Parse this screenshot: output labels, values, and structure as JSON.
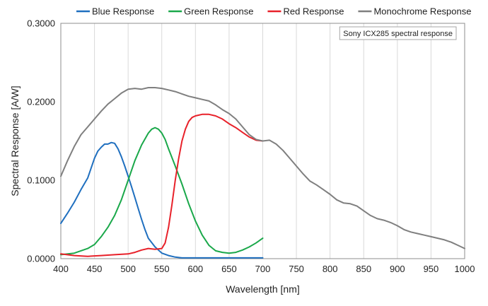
{
  "chart_data": {
    "type": "line",
    "xlabel": "Wavelength [nm]",
    "ylabel": "Spectral Response [A/W]",
    "xlim": [
      400,
      1000
    ],
    "ylim": [
      0,
      0.3
    ],
    "x_ticks": [
      "400",
      "450",
      "500",
      "550",
      "600",
      "650",
      "700",
      "750",
      "800",
      "850",
      "900",
      "950",
      "1000"
    ],
    "y_ticks": [
      "0.0000",
      "0.1000",
      "0.2000",
      "0.3000"
    ],
    "grid": "vertical",
    "legend_position": "top",
    "annotation": "Sony ICX285 spectral response",
    "series": [
      {
        "name": "Blue Response",
        "color": "#1f6fbf",
        "x": [
          400,
          410,
          420,
          430,
          440,
          450,
          455,
          460,
          465,
          470,
          475,
          480,
          485,
          490,
          495,
          500,
          505,
          510,
          515,
          520,
          525,
          530,
          540,
          550,
          560,
          570,
          580,
          600,
          650,
          700
        ],
        "y": [
          0.045,
          0.058,
          0.072,
          0.088,
          0.103,
          0.128,
          0.137,
          0.142,
          0.146,
          0.146,
          0.148,
          0.147,
          0.14,
          0.13,
          0.118,
          0.105,
          0.092,
          0.078,
          0.064,
          0.05,
          0.037,
          0.026,
          0.015,
          0.007,
          0.004,
          0.002,
          0.001,
          0.001,
          0.001,
          0.001
        ]
      },
      {
        "name": "Green Response",
        "color": "#1aa84a",
        "x": [
          400,
          420,
          440,
          450,
          460,
          470,
          480,
          490,
          500,
          510,
          520,
          530,
          535,
          540,
          545,
          550,
          555,
          560,
          570,
          580,
          590,
          600,
          610,
          620,
          630,
          640,
          650,
          660,
          670,
          680,
          690,
          700
        ],
        "y": [
          0.005,
          0.007,
          0.013,
          0.018,
          0.028,
          0.04,
          0.055,
          0.075,
          0.1,
          0.125,
          0.145,
          0.16,
          0.165,
          0.167,
          0.165,
          0.16,
          0.152,
          0.14,
          0.118,
          0.095,
          0.07,
          0.048,
          0.03,
          0.017,
          0.01,
          0.008,
          0.007,
          0.008,
          0.011,
          0.015,
          0.02,
          0.026
        ]
      },
      {
        "name": "Red Response",
        "color": "#e8212a",
        "x": [
          400,
          420,
          440,
          460,
          480,
          500,
          510,
          520,
          530,
          540,
          550,
          555,
          560,
          565,
          570,
          575,
          580,
          585,
          590,
          595,
          600,
          605,
          610,
          620,
          630,
          640,
          650,
          660,
          670,
          680,
          690,
          700
        ],
        "y": [
          0.006,
          0.004,
          0.003,
          0.004,
          0.005,
          0.006,
          0.008,
          0.011,
          0.013,
          0.012,
          0.013,
          0.02,
          0.04,
          0.068,
          0.1,
          0.127,
          0.15,
          0.165,
          0.175,
          0.18,
          0.182,
          0.183,
          0.184,
          0.184,
          0.182,
          0.178,
          0.172,
          0.167,
          0.161,
          0.155,
          0.151,
          0.15
        ]
      },
      {
        "name": "Monochrome Response",
        "color": "#7f7f7f",
        "x": [
          400,
          410,
          420,
          430,
          440,
          450,
          460,
          470,
          480,
          490,
          500,
          510,
          520,
          530,
          540,
          550,
          560,
          570,
          580,
          590,
          600,
          610,
          620,
          630,
          640,
          650,
          660,
          670,
          680,
          690,
          700,
          710,
          720,
          730,
          740,
          750,
          760,
          770,
          780,
          790,
          800,
          810,
          820,
          830,
          840,
          850,
          860,
          870,
          880,
          890,
          900,
          910,
          920,
          930,
          940,
          950,
          960,
          970,
          980,
          990,
          1000
        ],
        "y": [
          0.105,
          0.125,
          0.143,
          0.158,
          0.168,
          0.178,
          0.188,
          0.197,
          0.204,
          0.211,
          0.216,
          0.217,
          0.216,
          0.218,
          0.218,
          0.217,
          0.215,
          0.213,
          0.21,
          0.207,
          0.205,
          0.203,
          0.201,
          0.196,
          0.19,
          0.185,
          0.178,
          0.168,
          0.158,
          0.152,
          0.15,
          0.151,
          0.146,
          0.138,
          0.128,
          0.118,
          0.108,
          0.099,
          0.094,
          0.088,
          0.082,
          0.075,
          0.071,
          0.07,
          0.067,
          0.061,
          0.055,
          0.051,
          0.049,
          0.046,
          0.042,
          0.037,
          0.034,
          0.032,
          0.03,
          0.028,
          0.026,
          0.024,
          0.021,
          0.017,
          0.013
        ]
      }
    ]
  }
}
